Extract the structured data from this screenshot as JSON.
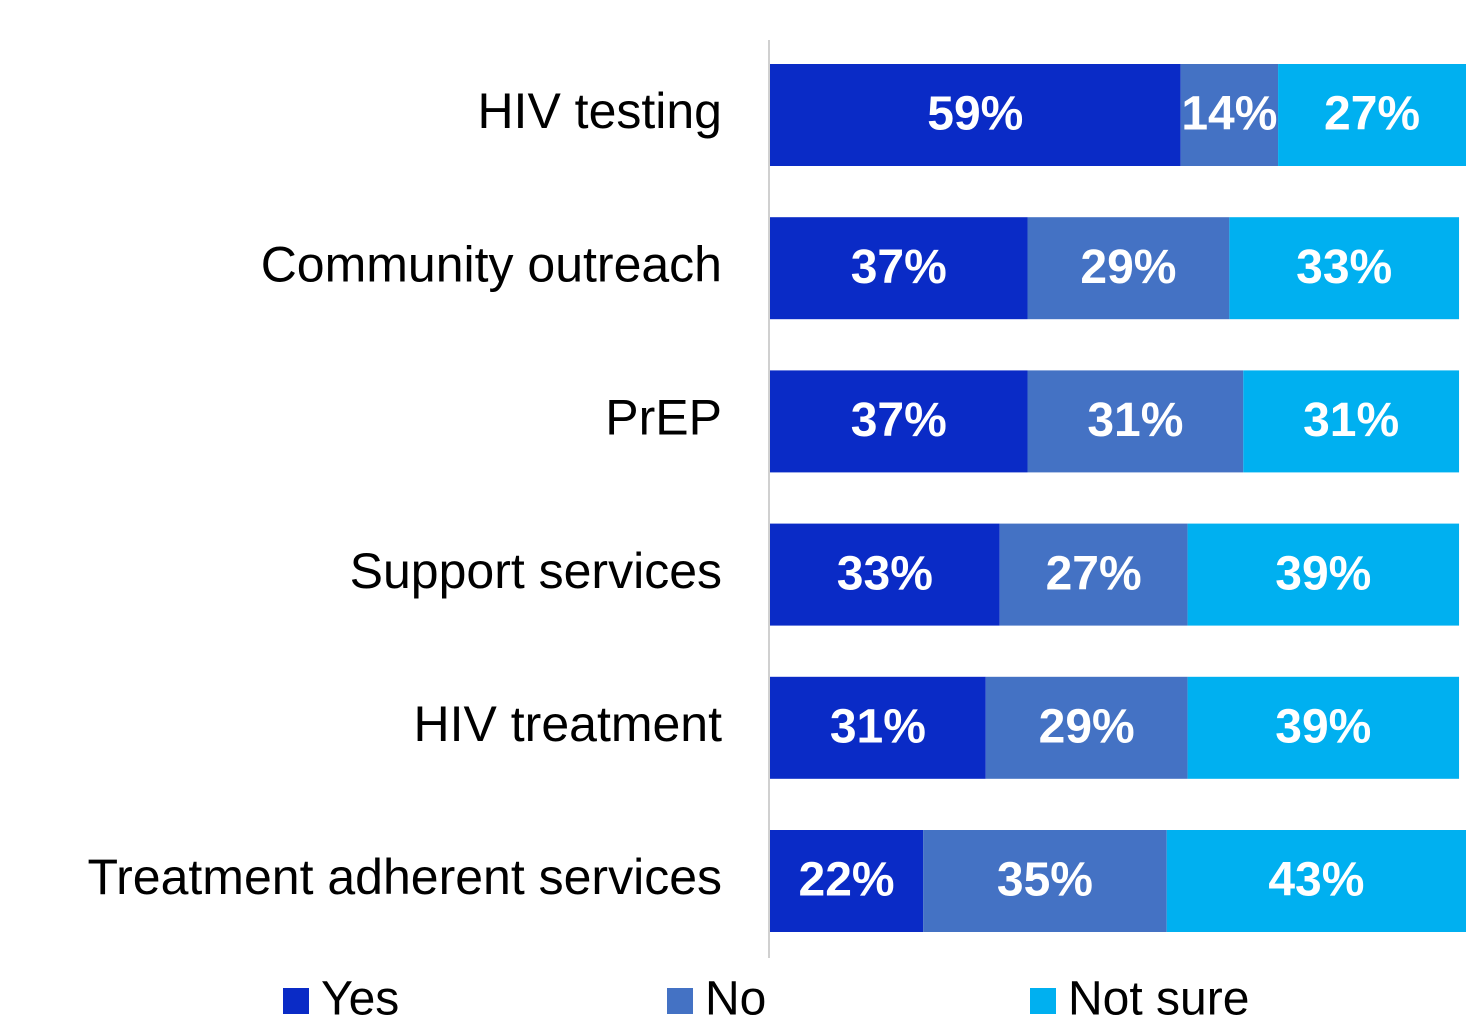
{
  "chart_data": {
    "type": "stacked_barh",
    "categories": [
      "HIV testing",
      "Community outreach",
      "PrEP",
      "Support services",
      "HIV treatment",
      "Treatment adherent services"
    ],
    "series": [
      {
        "name": "Yes",
        "color": "#0a2bc6",
        "values": [
          59,
          37,
          37,
          33,
          31,
          22
        ],
        "value_labels": [
          "59%",
          "37%",
          "37%",
          "33%",
          "31%",
          "22%"
        ]
      },
      {
        "name": "No",
        "color": "#4472c4",
        "values": [
          14,
          29,
          31,
          27,
          29,
          35
        ],
        "value_labels": [
          "14%",
          "29%",
          "31%",
          "27%",
          "29%",
          "35%"
        ]
      },
      {
        "name": "Not sure",
        "color": "#00b0f0",
        "values": [
          27,
          33,
          31,
          39,
          39,
          43
        ],
        "value_labels": [
          "27%",
          "33%",
          "31%",
          "39%",
          "39%",
          "43%"
        ]
      }
    ],
    "xlim": [
      0,
      100
    ],
    "legend": "bottom"
  }
}
